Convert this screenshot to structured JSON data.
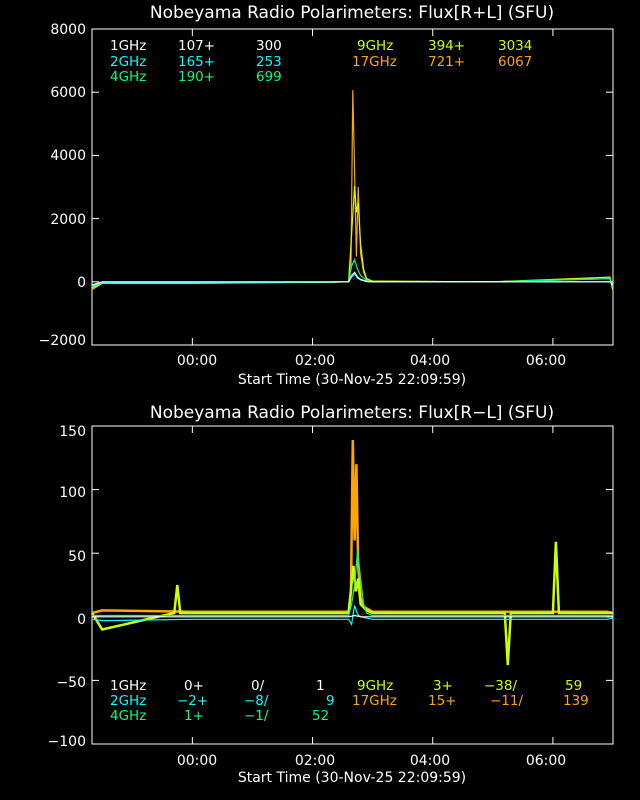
{
  "chart_data": [
    {
      "type": "line",
      "title": "Nobeyama Radio Polarimeters: Flux[R+L] (SFU)",
      "xlabel": "Start Time (30-Nov-25 22:09:59)",
      "xlim": [
        -1.67,
        7.0
      ],
      "ylim": [
        -2000,
        8000
      ],
      "yticks": [
        "8000",
        "6000",
        "4000",
        "2000",
        "0",
        "−2000"
      ],
      "ytick_values": [
        8000,
        6000,
        4000,
        2000,
        0,
        -2000
      ],
      "xticks": [
        "00:00",
        "02:00",
        "04:00",
        "06:00"
      ],
      "xtick_values": [
        0,
        2,
        4,
        6
      ],
      "series": [
        {
          "name": "1GHz",
          "color": "#ffffff",
          "mid": "107+",
          "peak": "300",
          "x": [
            -1.67,
            -1.5,
            0,
            2.3,
            2.6,
            2.65,
            2.7,
            2.75,
            2.8,
            2.9,
            3.0,
            5.0,
            6.95,
            7.0
          ],
          "y": [
            -100,
            0,
            0,
            0,
            0,
            200,
            300,
            150,
            80,
            10,
            0,
            0,
            0,
            -100
          ]
        },
        {
          "name": "2GHz",
          "color": "#00ffff",
          "mid": "165+",
          "peak": "253",
          "x": [
            -1.67,
            -1.5,
            0,
            2.3,
            2.6,
            2.65,
            2.7,
            2.75,
            2.8,
            2.9,
            3.0,
            5.0,
            6.95,
            7.0
          ],
          "y": [
            -120,
            -20,
            -20,
            -10,
            0,
            150,
            250,
            120,
            60,
            10,
            0,
            0,
            0,
            -80
          ]
        },
        {
          "name": "4GHz",
          "color": "#00ff7f",
          "mid": "190+",
          "peak": "699",
          "x": [
            -1.67,
            -1.5,
            0,
            2.3,
            2.6,
            2.65,
            2.7,
            2.75,
            2.8,
            2.9,
            3.0,
            5.0,
            6.95,
            7.0
          ],
          "y": [
            -150,
            -30,
            -30,
            -10,
            0,
            500,
            699,
            400,
            200,
            40,
            0,
            0,
            100,
            -150
          ]
        },
        {
          "name": "9GHz",
          "color": "#ccff00",
          "mid": "394+",
          "peak": "3034",
          "x": [
            -1.67,
            -1.5,
            0,
            2.3,
            2.6,
            2.65,
            2.7,
            2.73,
            2.76,
            2.8,
            2.85,
            2.9,
            3.0,
            5.0,
            6.95,
            7.0
          ],
          "y": [
            -200,
            -40,
            -40,
            -10,
            0,
            1500,
            3034,
            2200,
            2500,
            1200,
            400,
            100,
            20,
            0,
            150,
            -250
          ]
        },
        {
          "name": "17GHz",
          "color": "#ffa500",
          "mid": "721+",
          "peak": "6067",
          "x": [
            -1.67,
            -1.5,
            0,
            2.3,
            2.6,
            2.64,
            2.67,
            2.7,
            2.73,
            2.76,
            2.8,
            2.85,
            2.9,
            3.0,
            5.0,
            6.95,
            7.0
          ],
          "y": [
            -250,
            -50,
            -50,
            -10,
            0,
            500,
            6067,
            3500,
            800,
            3000,
            900,
            300,
            80,
            20,
            0,
            100,
            -300
          ]
        }
      ]
    },
    {
      "type": "line",
      "title": "Nobeyama Radio Polarimeters: Flux[R−L] (SFU)",
      "xlabel": "Start Time (30-Nov-25 22:09:59)",
      "xlim": [
        -1.67,
        7.0
      ],
      "ylim": [
        -100,
        150
      ],
      "yticks": [
        "150",
        "100",
        "50",
        "0",
        "−50",
        "−100"
      ],
      "ytick_values": [
        150,
        100,
        50,
        0,
        -50,
        -100
      ],
      "xticks": [
        "00:00",
        "02:00",
        "04:00",
        "06:00"
      ],
      "xtick_values": [
        0,
        2,
        4,
        6
      ],
      "series": [
        {
          "name": "1GHz",
          "color": "#ffffff",
          "mid": "0+",
          "low": "0/",
          "peak": "1",
          "x": [
            -1.67,
            0,
            2.6,
            2.7,
            2.8,
            3.0,
            7.0
          ],
          "y": [
            0,
            0,
            0,
            1,
            0,
            0,
            0
          ]
        },
        {
          "name": "2GHz",
          "color": "#00ffff",
          "mid": "−2+",
          "low": "−8/",
          "peak": "9",
          "x": [
            -1.67,
            -1.5,
            0,
            2.6,
            2.65,
            2.7,
            2.75,
            2.8,
            2.9,
            3.0,
            6.9,
            7.0
          ],
          "y": [
            -2,
            -3,
            -2,
            -2,
            -6,
            9,
            2,
            0,
            -1,
            -2,
            -2,
            -1
          ]
        },
        {
          "name": "4GHz",
          "color": "#00ff7f",
          "mid": "1+",
          "low": "−1/",
          "peak": "52",
          "x": [
            -1.67,
            0,
            2.6,
            2.65,
            2.7,
            2.75,
            2.8,
            2.85,
            2.9,
            3.0,
            7.0
          ],
          "y": [
            1,
            1,
            1,
            10,
            25,
            52,
            30,
            10,
            3,
            1,
            1
          ]
        },
        {
          "name": "9GHz",
          "color": "#ccff00",
          "mid": "3+",
          "low": "−38/",
          "peak": "59",
          "x": [
            -1.67,
            -1.5,
            -0.3,
            -0.25,
            -0.2,
            0,
            2.6,
            2.68,
            2.72,
            2.76,
            2.8,
            2.9,
            3.0,
            5.2,
            5.25,
            5.3,
            6.0,
            6.05,
            6.1,
            7.0
          ],
          "y": [
            3,
            -10,
            3,
            25,
            3,
            3,
            3,
            40,
            20,
            30,
            10,
            5,
            3,
            3,
            -38,
            3,
            3,
            59,
            3,
            3
          ]
        },
        {
          "name": "17GHz",
          "color": "#ffa500",
          "mid": "15+",
          "low": "−11/",
          "peak": "139",
          "x": [
            -1.67,
            -1.5,
            0,
            2.6,
            2.64,
            2.67,
            2.7,
            2.73,
            2.76,
            2.8,
            2.85,
            3.0,
            6.9,
            7.0
          ],
          "y": [
            3,
            5,
            4,
            4,
            20,
            139,
            60,
            120,
            40,
            15,
            8,
            4,
            4,
            3
          ]
        }
      ]
    }
  ]
}
